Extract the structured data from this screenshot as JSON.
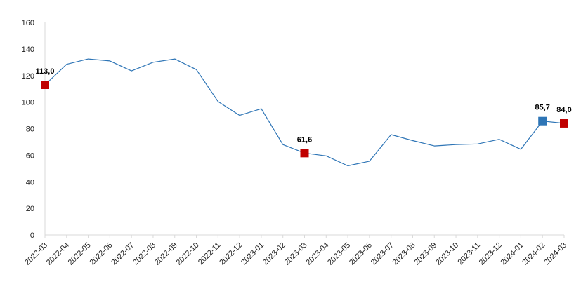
{
  "chart_data": {
    "type": "line",
    "title": "",
    "xlabel": "",
    "ylabel": "",
    "ylim": [
      0,
      160
    ],
    "yticks": [
      0,
      20,
      40,
      60,
      80,
      100,
      120,
      140,
      160
    ],
    "grid": false,
    "legend": "none",
    "x": [
      "2022-03",
      "2022-04",
      "2022-05",
      "2022-06",
      "2022-07",
      "2022-08",
      "2022-09",
      "2022-10",
      "2022-11",
      "2022-12",
      "2023-01",
      "2023-02",
      "2023-03",
      "2023-04",
      "2023-05",
      "2023-06",
      "2023-07",
      "2023-08",
      "2023-09",
      "2023-10",
      "2023-11",
      "2023-12",
      "2024-01",
      "2024-02",
      "2024-03"
    ],
    "series": [
      {
        "values": [
          113.0,
          128.5,
          132.5,
          131.0,
          123.5,
          130.0,
          132.5,
          124.5,
          100.5,
          90.0,
          95.0,
          68.0,
          61.6,
          59.5,
          52.0,
          55.5,
          75.5,
          71.0,
          67.0,
          68.0,
          68.5,
          72.0,
          64.5,
          85.7,
          84.0
        ],
        "color": "#2e75b6"
      }
    ],
    "highlights": [
      {
        "x": "2022-03",
        "value": 113.0,
        "label": "113,0",
        "color": "#c00000"
      },
      {
        "x": "2023-03",
        "value": 61.6,
        "label": "61,6",
        "color": "#c00000"
      },
      {
        "x": "2024-02",
        "value": 85.7,
        "label": "85,7",
        "color": "#2e75b6"
      },
      {
        "x": "2024-03",
        "value": 84.0,
        "label": "84,0",
        "color": "#c00000"
      }
    ]
  }
}
